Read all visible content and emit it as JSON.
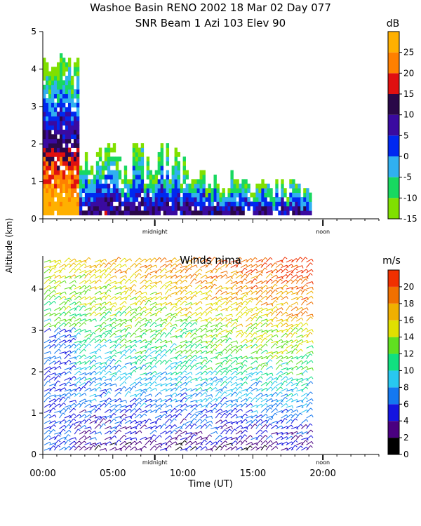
{
  "chart_data": [
    {
      "type": "heatmap",
      "title_line1": "Washoe Basin RENO 2002  18 Mar 02 Day 077",
      "title_line2": "SNR Beam 1 Azi 103 Elev 90",
      "quantity": "SNR",
      "colorbar": {
        "unit": "dB",
        "range": [
          -15,
          30
        ],
        "ticks": [
          "25",
          "20",
          "15",
          "10",
          "5",
          "0",
          "-5",
          "-10",
          "-15"
        ],
        "tick_values": [
          25,
          20,
          15,
          10,
          5,
          0,
          -5,
          -10,
          -15
        ],
        "colors": [
          "#80e000",
          "#18d860",
          "#30b0f0",
          "#0028f0",
          "#3a0aa0",
          "#2a0848",
          "#e01010",
          "#ff8000",
          "#ffb000"
        ]
      },
      "ylim": [
        0,
        5
      ],
      "yticks": [
        "0",
        "1",
        "2",
        "3",
        "4",
        "5"
      ],
      "ytick_values": [
        0,
        1,
        2,
        3,
        4,
        5
      ],
      "markers": [
        {
          "label": "midnight",
          "hour": 8
        },
        {
          "label": "noon",
          "hour": 20
        }
      ],
      "data_coverage_hours": [
        0,
        19
      ]
    },
    {
      "type": "scatter",
      "title": "Winds nima",
      "quantity": "wind speed (barbs)",
      "colorbar": {
        "unit": "m/s",
        "range": [
          0,
          22
        ],
        "ticks": [
          "20",
          "18",
          "16",
          "14",
          "12",
          "10",
          "8",
          "6",
          "4",
          "2",
          "0"
        ],
        "tick_values": [
          20,
          18,
          16,
          14,
          12,
          10,
          8,
          6,
          4,
          2,
          0
        ],
        "colors": [
          "#000000",
          "#4a0080",
          "#1414e0",
          "#1478f0",
          "#28c8f0",
          "#10e080",
          "#60e020",
          "#e0e000",
          "#f0b000",
          "#f07000",
          "#f03000"
        ]
      },
      "ylim": [
        0,
        4.8
      ],
      "yticks": [
        "0",
        "1",
        "2",
        "3",
        "4"
      ],
      "ytick_values": [
        0,
        1,
        2,
        3,
        4
      ],
      "xlim": [
        0,
        24
      ],
      "xticks": [
        "00:00",
        "05:00",
        "10:00",
        "15:00",
        "20:00"
      ],
      "xtick_values": [
        0,
        5,
        10,
        15,
        20
      ],
      "xlabel": "Time (UT)",
      "markers": [
        {
          "label": "midnight",
          "hour": 8
        },
        {
          "label": "noon",
          "hour": 20
        }
      ],
      "data_coverage_hours": [
        0,
        19
      ]
    }
  ],
  "shared": {
    "ylabel": "Altitude (km)"
  }
}
